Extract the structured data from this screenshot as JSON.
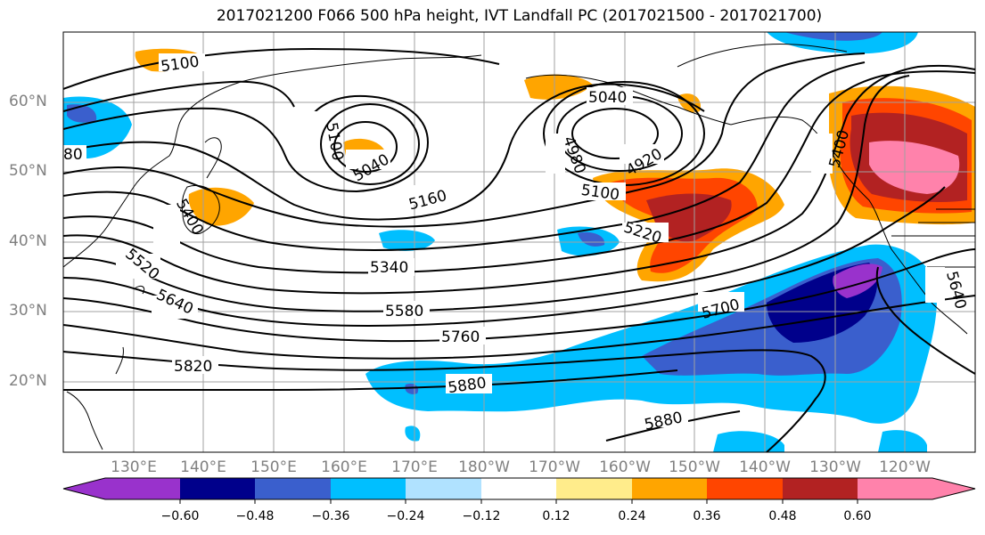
{
  "title": "2017021200 F066 500 hPa height, IVT Landfall PC (2017021500 - 2017021700)",
  "lat_labels": [
    "60°N",
    "50°N",
    "40°N",
    "30°N",
    "20°N"
  ],
  "lon_labels": [
    "130°E",
    "140°E",
    "150°E",
    "160°E",
    "170°E",
    "180°W",
    "170°W",
    "160°W",
    "150°W",
    "140°W",
    "130°W",
    "120°W"
  ],
  "contour_labels": [
    "5100",
    "5100",
    "5040",
    "5040",
    "4980",
    "4920",
    "5100",
    "5160",
    "5220",
    "5340",
    "5400",
    "5520",
    "5580",
    "5640",
    "5700",
    "5760",
    "5820",
    "5880",
    "5880",
    "5400",
    "5640",
    "80"
  ],
  "colorbar": {
    "ticks": [
      "−0.60",
      "−0.48",
      "−0.36",
      "−0.24",
      "−0.12",
      "0.12",
      "0.24",
      "0.36",
      "0.48",
      "0.60"
    ],
    "colors": [
      "#9932CC",
      "#00008B",
      "#3A5FCD",
      "#00BFFF",
      "#B0E2FF",
      "#FFFFFF",
      "#FFEC8B",
      "#FFA500",
      "#FF4500",
      "#B22222",
      "#FF82AB"
    ]
  }
}
